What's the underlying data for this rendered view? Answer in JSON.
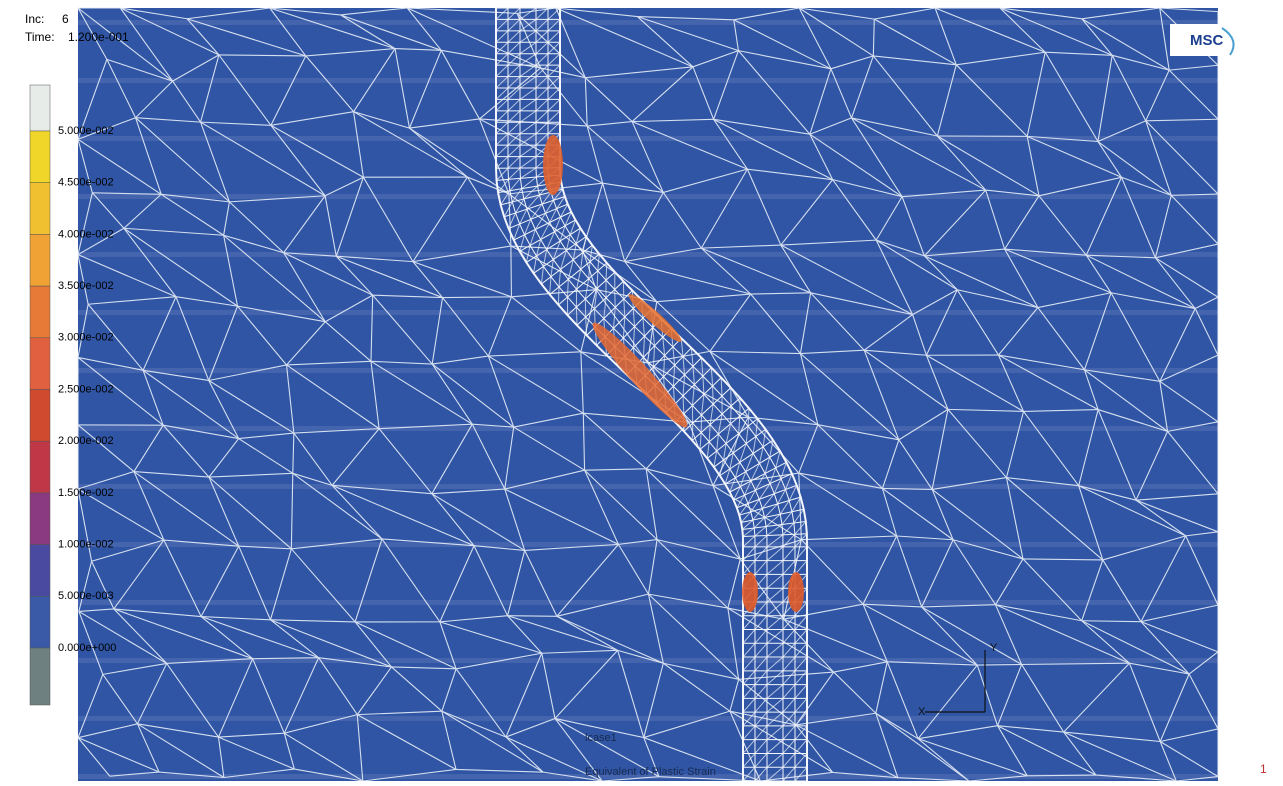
{
  "header": {
    "inc_label": "Inc:",
    "inc": 6,
    "time_label": "Time:",
    "time": "1.200e-001"
  },
  "legend": {
    "labels": [
      "5.000e-002",
      "4.500e-002",
      "4.000e-002",
      "3.500e-002",
      "3.000e-002",
      "2.500e-002",
      "2.000e-002",
      "1.500e-002",
      "1.000e-002",
      "5.000e-003",
      "0.000e+000"
    ]
  },
  "logo": "MSC",
  "footer": {
    "case": "lcase1",
    "variable": "Equivalent of Plastic Strain"
  },
  "axes": {
    "x": "X",
    "y": "Y"
  },
  "page_number": "1"
}
